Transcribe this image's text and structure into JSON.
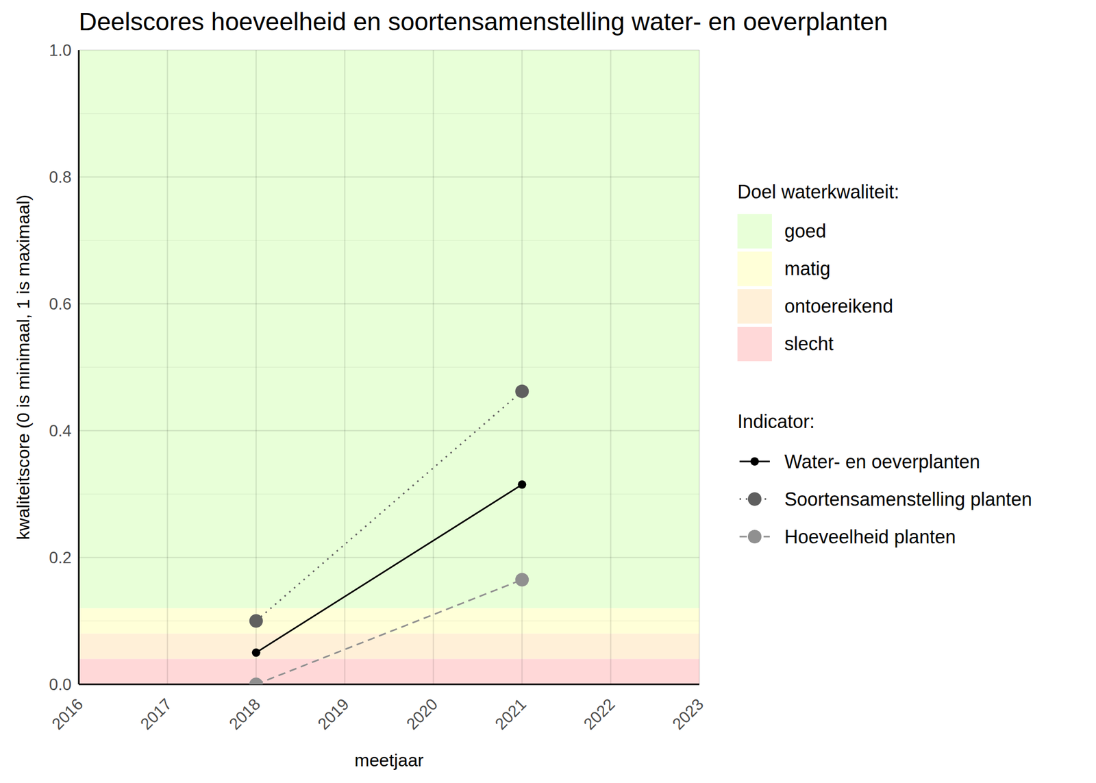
{
  "chart_data": {
    "type": "line",
    "title": "Deelscores hoeveelheid en soortensamenstelling water- en oeverplanten",
    "x_label": "meetjaar",
    "y_label": "kwaliteitscore (0 is minimaal, 1 is maximaal)",
    "x": [
      2018,
      2021
    ],
    "series": [
      {
        "name": "Water- en oeverplanten",
        "color": "#000000",
        "line_style": "solid",
        "marker": "circle",
        "values": [
          0.05,
          0.315
        ]
      },
      {
        "name": "Soortensamenstelling planten",
        "color": "#5f5f5f",
        "line_style": "dotted",
        "marker": "circle",
        "values": [
          0.1,
          0.462
        ]
      },
      {
        "name": "Hoeveelheid planten",
        "color": "#909090",
        "line_style": "dashed",
        "marker": "circle",
        "values": [
          0.0,
          0.165
        ]
      }
    ],
    "band_legend_title": "Doel waterkwaliteit:",
    "series_legend_title": "Indicator:",
    "bands": [
      {
        "name": "goed",
        "from": 0.12,
        "to": 1.0,
        "color": "#e8ffd8"
      },
      {
        "name": "matig",
        "from": 0.08,
        "to": 0.12,
        "color": "#ffffd8"
      },
      {
        "name": "ontoereikend",
        "from": 0.04,
        "to": 0.08,
        "color": "#fff0d8"
      },
      {
        "name": "slecht",
        "from": 0.0,
        "to": 0.04,
        "color": "#ffd8d8"
      }
    ],
    "xlim": [
      2016,
      2023
    ],
    "xticks": [
      2016,
      2017,
      2018,
      2019,
      2020,
      2021,
      2022,
      2023
    ],
    "ylim": [
      0,
      1
    ],
    "yticks": [
      {
        "value": 0,
        "label": "0.0"
      },
      {
        "value": 0.2,
        "label": "0.2"
      },
      {
        "value": 0.4,
        "label": "0.4"
      },
      {
        "value": 0.6,
        "label": "0.6"
      },
      {
        "value": 0.8,
        "label": "0.8"
      },
      {
        "value": 1,
        "label": "1.0"
      }
    ],
    "grid": true,
    "legend": "right"
  }
}
